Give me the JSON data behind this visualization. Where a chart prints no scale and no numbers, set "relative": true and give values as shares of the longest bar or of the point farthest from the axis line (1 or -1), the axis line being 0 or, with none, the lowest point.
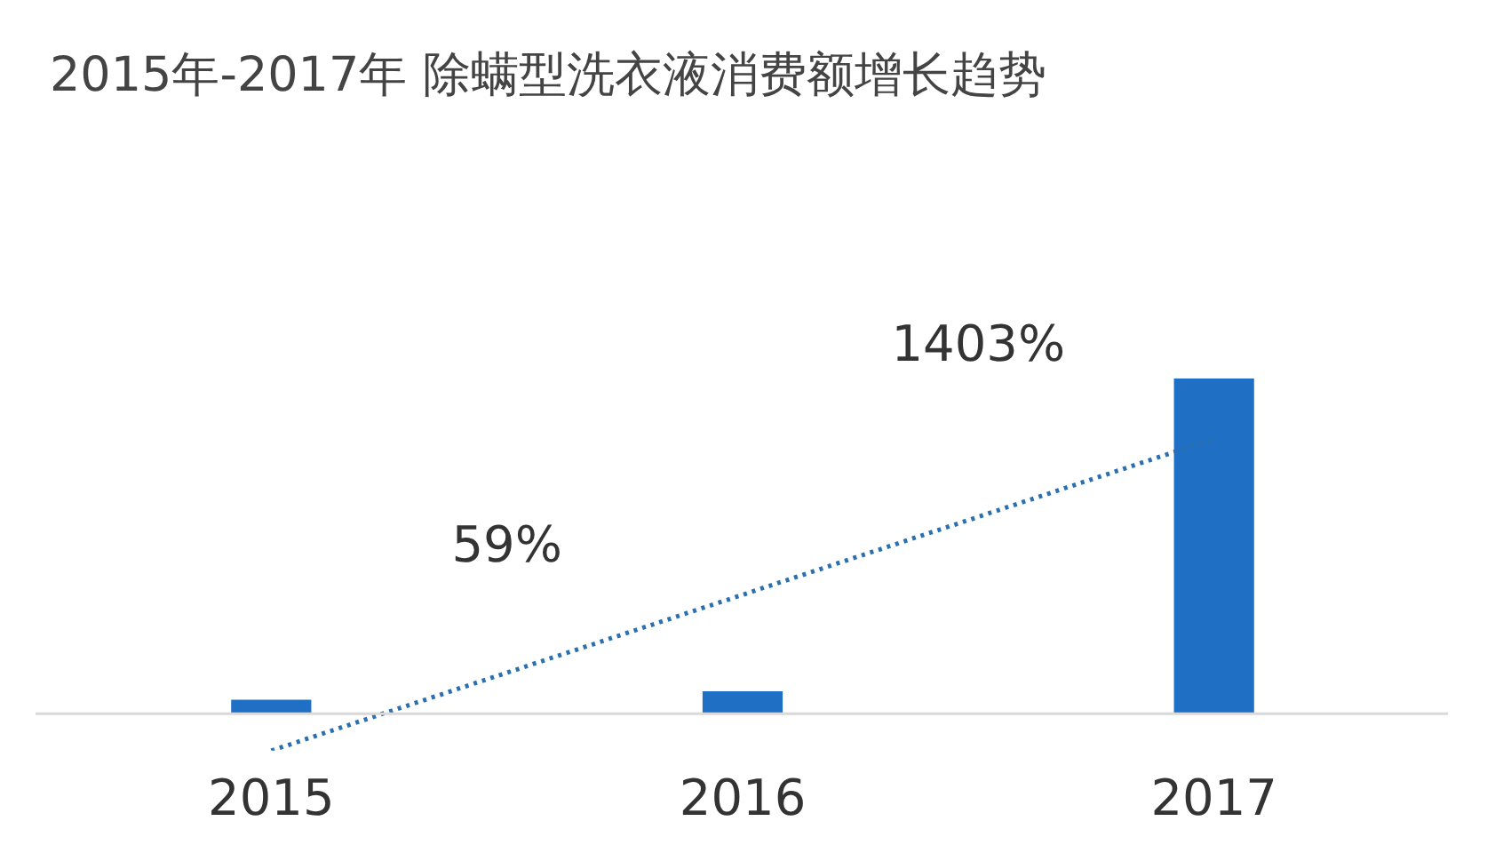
{
  "chart_data": {
    "type": "bar",
    "title": "2015年-2017年 除螨型洗衣液消费额增长趋势",
    "categories": [
      "2015",
      "2016",
      "2017"
    ],
    "relative": true,
    "series": [
      {
        "color": "#1f6fc5",
        "values": [
          0.042,
          0.067,
          1
        ]
      },
      {
        "type": "line",
        "color": "#2a6fb0",
        "line_style": "dotted",
        "marker": "none",
        "values": [
          -0.11,
          0.355,
          0.82
        ]
      }
    ],
    "annotations": [
      "59%",
      "1403%"
    ],
    "grid": false,
    "legend": false
  }
}
